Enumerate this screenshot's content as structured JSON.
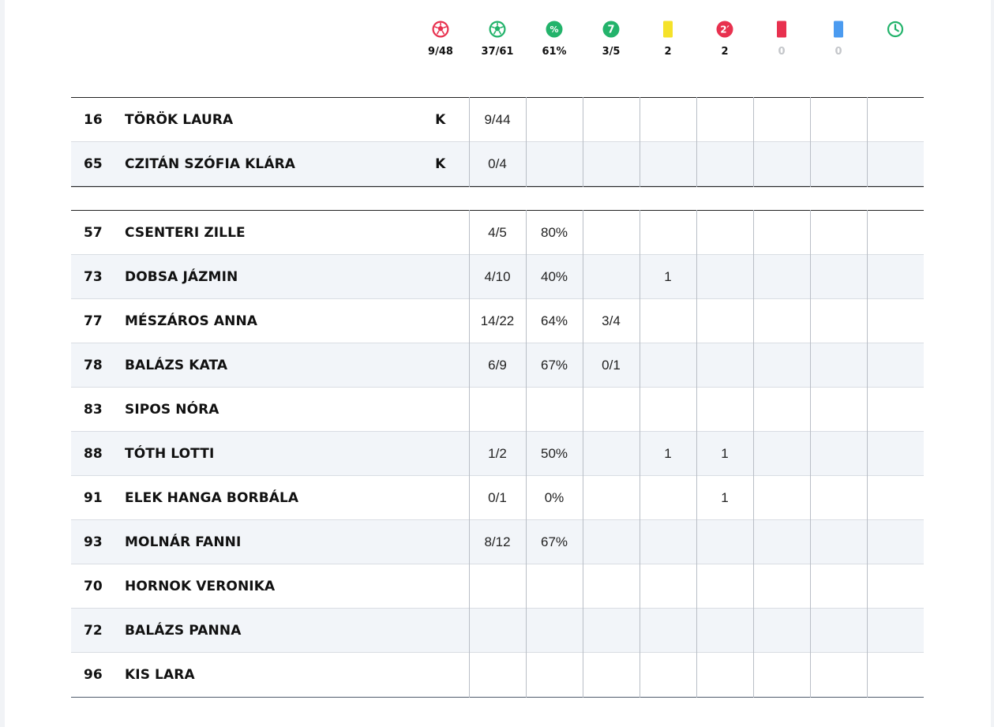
{
  "stats_header": [
    {
      "icon": "ball-red-icon",
      "value": "9/48",
      "muted": false,
      "color": "#e8314f"
    },
    {
      "icon": "ball-green-icon",
      "value": "37/61",
      "muted": false,
      "color": "#23b36b"
    },
    {
      "icon": "percent-icon",
      "label": "%",
      "value": "61%",
      "muted": false,
      "color": "#23b36b"
    },
    {
      "icon": "seven-meter-icon",
      "label": "7",
      "value": "3/5",
      "muted": false,
      "color": "#23b36b"
    },
    {
      "icon": "yellow-card-icon",
      "value": "2",
      "muted": false,
      "color": "#f5e22a"
    },
    {
      "icon": "two-minute-icon",
      "label": "2′",
      "value": "2",
      "muted": false,
      "color": "#e8314f"
    },
    {
      "icon": "red-card-icon",
      "value": "0",
      "muted": true,
      "color": "#e8314f"
    },
    {
      "icon": "blue-card-icon",
      "value": "0",
      "muted": true,
      "color": "#4b9bf0"
    },
    {
      "icon": "clock-icon",
      "value": "",
      "muted": false,
      "color": "#23b36b"
    }
  ],
  "goalkeepers": [
    {
      "number": "16",
      "name": "TÖRÖK LAURA",
      "pos": "K",
      "saves": "9/44"
    },
    {
      "number": "65",
      "name": "CZITÁN SZÓFIA KLÁRA",
      "pos": "K",
      "saves": "0/4"
    }
  ],
  "players": [
    {
      "number": "57",
      "name": "CSENTERI ZILLE",
      "cells": [
        "4/5",
        "80%",
        "",
        "",
        "",
        "",
        "",
        ""
      ]
    },
    {
      "number": "73",
      "name": "DOBSA JÁZMIN",
      "cells": [
        "4/10",
        "40%",
        "",
        "1",
        "",
        "",
        "",
        ""
      ]
    },
    {
      "number": "77",
      "name": "MÉSZÁROS ANNA",
      "cells": [
        "14/22",
        "64%",
        "3/4",
        "",
        "",
        "",
        "",
        ""
      ]
    },
    {
      "number": "78",
      "name": "BALÁZS KATA",
      "cells": [
        "6/9",
        "67%",
        "0/1",
        "",
        "",
        "",
        "",
        ""
      ]
    },
    {
      "number": "83",
      "name": "SIPOS NÓRA",
      "cells": [
        "",
        "",
        "",
        "",
        "",
        "",
        "",
        ""
      ]
    },
    {
      "number": "88",
      "name": "TÓTH LOTTI",
      "cells": [
        "1/2",
        "50%",
        "",
        "1",
        "1",
        "",
        "",
        ""
      ]
    },
    {
      "number": "91",
      "name": "ELEK HANGA BORBÁLA",
      "cells": [
        "0/1",
        "0%",
        "",
        "",
        "1",
        "",
        "",
        ""
      ]
    },
    {
      "number": "93",
      "name": "MOLNÁR FANNI",
      "cells": [
        "8/12",
        "67%",
        "",
        "",
        "",
        "",
        "",
        ""
      ]
    },
    {
      "number": "70",
      "name": "HORNOK VERONIKA",
      "cells": [
        "",
        "",
        "",
        "",
        "",
        "",
        "",
        ""
      ]
    },
    {
      "number": "72",
      "name": "BALÁZS PANNA",
      "cells": [
        "",
        "",
        "",
        "",
        "",
        "",
        "",
        ""
      ]
    },
    {
      "number": "96",
      "name": "KIS LARA",
      "cells": [
        "",
        "",
        "",
        "",
        "",
        "",
        "",
        ""
      ]
    }
  ]
}
